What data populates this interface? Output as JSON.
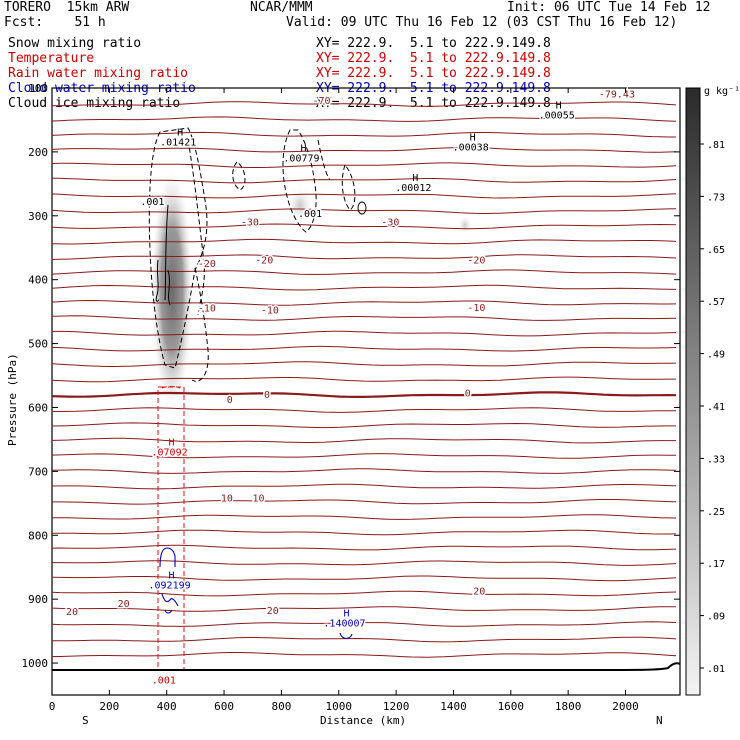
{
  "header": {
    "model": "TORERO  15km ARW",
    "center": "NCAR/MMM",
    "init": "Init: 06 UTC Tue 14 Feb 12",
    "fcst": "Fcst:    51 h",
    "valid": "Valid: 09 UTC Thu 16 Feb 12 (03 CST Thu 16 Feb 12)"
  },
  "legend": [
    {
      "label": "Snow mixing ratio",
      "xy": "XY= 222.9.  5.1 to 222.9.149.8",
      "color": "#000000"
    },
    {
      "label": "Temperature",
      "xy": "XY= 222.9.  5.1 to 222.9.149.8",
      "color": "#cc0000"
    },
    {
      "label": "Rain water mixing ratio",
      "xy": "XY= 222.9.  5.1 to 222.9.149.8",
      "color": "#cc0000"
    },
    {
      "label": "Cloud water mixing ratio",
      "xy": "XY= 222.9.  5.1 to 222.9.149.8",
      "color": "#0000bb"
    },
    {
      "label": "Cloud ice mixing ratio",
      "xy": "XY= 222.9.  5.1 to 222.9.149.8",
      "color": "#000000"
    }
  ],
  "chart_data": {
    "type": "cross-section",
    "xlabel": "Distance (km)",
    "ylabel": "Pressure (hPa)",
    "xlim": [
      0,
      2190
    ],
    "ylim": [
      1050,
      100
    ],
    "x_ticks": [
      0,
      200,
      400,
      600,
      800,
      1000,
      1200,
      1400,
      1600,
      1800,
      2000
    ],
    "y_ticks": [
      100,
      200,
      300,
      400,
      500,
      600,
      700,
      800,
      900,
      1000
    ],
    "left_end": "S",
    "right_end": "N",
    "colorbar": {
      "unit": "g kg⁻¹",
      "ticks": [
        ".81",
        ".73",
        ".65",
        ".57",
        ".49",
        ".41",
        ".33",
        ".25",
        ".17",
        ".09",
        ".01"
      ]
    },
    "temperature_labels": [
      {
        "label": "-79.43",
        "x": 1970,
        "p": 115
      },
      {
        "label": "-70",
        "x": 940,
        "p": 125
      },
      {
        "label": "-30",
        "x": 690,
        "p": 315
      },
      {
        "label": "-30",
        "x": 1180,
        "p": 315
      },
      {
        "label": "-20",
        "x": 540,
        "p": 380
      },
      {
        "label": "-20",
        "x": 740,
        "p": 375
      },
      {
        "label": "-20",
        "x": 1480,
        "p": 375
      },
      {
        "label": "-10",
        "x": 540,
        "p": 450
      },
      {
        "label": "-10",
        "x": 760,
        "p": 453
      },
      {
        "label": "-10",
        "x": 1480,
        "p": 449
      },
      {
        "label": "0",
        "x": 620,
        "p": 593
      },
      {
        "label": "0",
        "x": 750,
        "p": 585
      },
      {
        "label": "0",
        "x": 1450,
        "p": 583
      },
      {
        "label": "10",
        "x": 610,
        "p": 747
      },
      {
        "label": "10",
        "x": 720,
        "p": 747
      },
      {
        "label": "20",
        "x": 70,
        "p": 925
      },
      {
        "label": "20",
        "x": 250,
        "p": 912
      },
      {
        "label": "20",
        "x": 770,
        "p": 923
      },
      {
        "label": "20",
        "x": 1490,
        "p": 893
      }
    ],
    "snow_maxima": [
      {
        "label": ".01421",
        "x": 440,
        "p": 190
      },
      {
        "label": ".00779",
        "x": 870,
        "p": 215
      },
      {
        "label": ".001",
        "x": 350,
        "p": 283
      },
      {
        "label": ".001",
        "x": 900,
        "p": 302
      }
    ],
    "ice_maxima": [
      {
        "label": ".00038",
        "x": 1460,
        "p": 198
      },
      {
        "label": ".00012",
        "x": 1260,
        "p": 261
      },
      {
        "label": ".00055",
        "x": 1760,
        "p": 148
      }
    ],
    "rain_maxima": [
      {
        "label": ".07092",
        "x": 410,
        "p": 675
      },
      {
        "label": ".001",
        "x": 390,
        "p": 1032
      }
    ],
    "cloud_water_maxima": [
      {
        "label": ".092199",
        "x": 410,
        "p": 883
      },
      {
        "label": ".140007",
        "x": 1020,
        "p": 943
      }
    ]
  }
}
